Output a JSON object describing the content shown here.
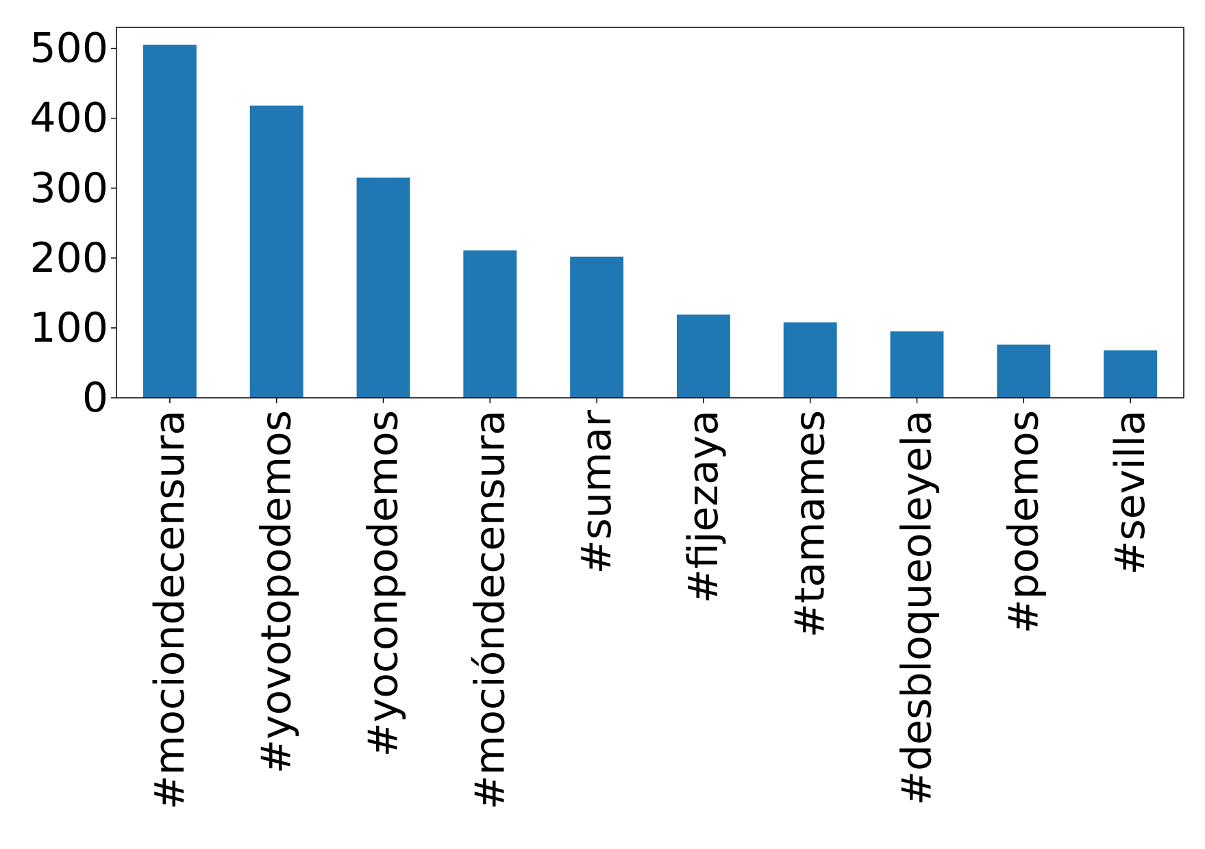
{
  "chart_data": {
    "type": "bar",
    "title": "",
    "xlabel": "",
    "ylabel": "",
    "categories": [
      "#mociondecensura",
      "#yovotopodemos",
      "#yoconpodemos",
      "#mocióndecensura",
      "#sumar",
      "#fijezaya",
      "#tamames",
      "#desbloqueoleyela",
      "#podemos",
      "#sevilla"
    ],
    "values": [
      505,
      418,
      315,
      211,
      202,
      119,
      108,
      95,
      76,
      68
    ],
    "ylim": [
      0,
      530
    ],
    "yticks": [
      0,
      100,
      200,
      300,
      400,
      500
    ],
    "ytick_labels": [
      "0",
      "100",
      "200",
      "300",
      "400",
      "500"
    ],
    "bar_color": "#1f77b4",
    "grid": false,
    "legend": "none"
  }
}
